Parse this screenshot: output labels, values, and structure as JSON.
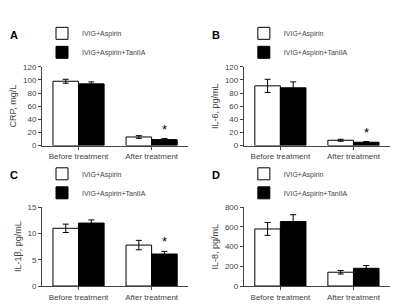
{
  "chart_data": [
    {
      "type": "bar",
      "title": "A",
      "ylabel": "CRP, mg/L",
      "categories": [
        "Before treatment",
        "After treatment"
      ],
      "series": [
        {
          "name": "IVIG+Aspirin",
          "color": "white",
          "values": [
            98,
            13
          ],
          "errors": [
            3,
            2
          ]
        },
        {
          "name": "IVIG+Aspirin+TanIIA",
          "color": "black",
          "values": [
            94,
            9
          ],
          "errors": [
            3,
            1.5
          ]
        }
      ],
      "ylim": [
        0,
        120
      ],
      "yticks": [
        0,
        20,
        40,
        60,
        80,
        100,
        120
      ],
      "annotations": [
        {
          "text": "*",
          "category": "After treatment",
          "series": "IVIG+Aspirin+TanIIA"
        }
      ],
      "legend": "upper left",
      "grid": false
    },
    {
      "type": "bar",
      "title": "B",
      "ylabel": "IL-6, pg/mL",
      "categories": [
        "Before treatment",
        "After treatment"
      ],
      "series": [
        {
          "name": "IVIG+Aspirin",
          "color": "white",
          "values": [
            91,
            8
          ],
          "errors": [
            10,
            1.5
          ]
        },
        {
          "name": "IVIG+Aspirin+TanIIA",
          "color": "black",
          "values": [
            88,
            5
          ],
          "errors": [
            9,
            1
          ]
        }
      ],
      "ylim": [
        0,
        120
      ],
      "yticks": [
        0,
        20,
        40,
        60,
        80,
        100,
        120
      ],
      "annotations": [
        {
          "text": "*",
          "category": "After treatment",
          "series": "IVIG+Aspirin+TanIIA"
        }
      ],
      "legend": "upper left",
      "grid": false
    },
    {
      "type": "bar",
      "title": "C",
      "ylabel": "IL-1β, pg/mL",
      "categories": [
        "Before treatment",
        "After treatment"
      ],
      "series": [
        {
          "name": "IVIG+Aspirin",
          "color": "white",
          "values": [
            11,
            7.8
          ],
          "errors": [
            0.8,
            0.9
          ]
        },
        {
          "name": "IVIG+Aspirin+TanIIA",
          "color": "black",
          "values": [
            12,
            6.1
          ],
          "errors": [
            0.6,
            0.5
          ]
        }
      ],
      "ylim": [
        0,
        15
      ],
      "yticks": [
        0,
        5,
        10,
        15
      ],
      "annotations": [
        {
          "text": "*",
          "category": "After treatment",
          "series": "IVIG+Aspirin+TanIIA"
        }
      ],
      "legend": "upper left",
      "grid": false
    },
    {
      "type": "bar",
      "title": "D",
      "ylabel": "IL-8, pg/mL",
      "categories": [
        "Before treatment",
        "After treatment"
      ],
      "series": [
        {
          "name": "IVIG+Aspirin",
          "color": "white",
          "values": [
            580,
            140
          ],
          "errors": [
            65,
            18
          ]
        },
        {
          "name": "IVIG+Aspirin+TanIIA",
          "color": "black",
          "values": [
            655,
            180
          ],
          "errors": [
            70,
            28
          ]
        }
      ],
      "ylim": [
        0,
        800
      ],
      "yticks": [
        0,
        200,
        400,
        600,
        800
      ],
      "legend": "upper left",
      "grid": false
    }
  ]
}
